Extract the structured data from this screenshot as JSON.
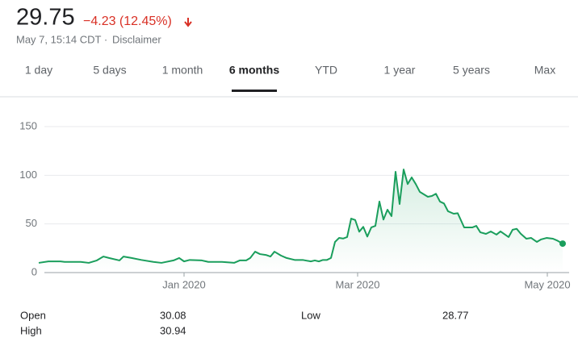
{
  "header": {
    "price": 29.75,
    "change": "−4.23 (12.45%)",
    "timestamp": "May 7, 15:14 CDT ·",
    "disclaimer": "Disclaimer"
  },
  "tabs": [
    "1 day",
    "5 days",
    "1 month",
    "6 months",
    "YTD",
    "1 year",
    "5 years",
    "Max"
  ],
  "selected_tab": 3,
  "chart_data": {
    "type": "line",
    "color": "#1a9e5c",
    "grid": true,
    "x": [
      0,
      2.4,
      5.4,
      6.4,
      8.4,
      10.4,
      12.4,
      14.4,
      16,
      17.4,
      20,
      21,
      23,
      25.4,
      28.4,
      30.4,
      33.4,
      34.8,
      36,
      37.4,
      40.4,
      42,
      45.4,
      48.4,
      49.8,
      51.4,
      52.4,
      53.6,
      54.8,
      56.4,
      57.4,
      58.4,
      60,
      61.4,
      63.4,
      65.4,
      67.4,
      68.4,
      69.4,
      70.4,
      71.4,
      72.4,
      73.4,
      74.4,
      75.4,
      76.4,
      77.4,
      78.4,
      79.4,
      80.4,
      81.4,
      82.4,
      83.4,
      84.4,
      85.4,
      86.4,
      87.4,
      88.4,
      89.4,
      90.4,
      91.4,
      92.4,
      93.4,
      94.4,
      96.4,
      97.4,
      98.4,
      99.4,
      100.4,
      101.4,
      102.8,
      103.8,
      105.4,
      107.4,
      108.4,
      109.4,
      110.8,
      112,
      113.4,
      114.4,
      116.4,
      117.4,
      118.4,
      119.4,
      120.8,
      122,
      123.4,
      124.4,
      125.8,
      127.4,
      128.4,
      129.8
    ],
    "values": [
      10,
      11.5,
      11.5,
      11,
      11,
      11,
      10,
      12.5,
      16.5,
      15,
      12.5,
      16.5,
      15,
      13,
      11,
      10,
      12.5,
      15,
      11.5,
      13,
      12.5,
      11,
      11,
      10,
      12.5,
      12.5,
      15,
      21.5,
      19,
      18,
      16.5,
      21.5,
      17.5,
      15,
      13,
      13,
      11.5,
      12.5,
      11.5,
      13,
      13,
      15,
      31.5,
      35.6,
      35,
      36.5,
      55.5,
      54,
      42,
      47,
      37,
      46.5,
      48,
      73,
      54.5,
      64.6,
      58,
      103.6,
      70.4,
      106,
      91,
      97.8,
      91,
      83,
      77.9,
      78.7,
      81,
      73,
      71,
      63,
      60.5,
      61,
      46.4,
      46.4,
      48,
      41.4,
      39.8,
      42.3,
      39,
      42.3,
      36.5,
      44,
      45,
      40,
      34.8,
      35.6,
      31.5,
      34,
      35.6,
      34.8,
      33,
      29.75
    ],
    "xlim": [
      0,
      130
    ],
    "xticks": [
      {
        "value": 36,
        "label": "Jan 2020"
      },
      {
        "value": 79,
        "label": "Mar 2020"
      },
      {
        "value": 126,
        "label": "May 2020"
      }
    ],
    "ylim": [
      0,
      150
    ],
    "yticks": [
      0,
      50,
      100,
      150
    ]
  },
  "stats": [
    {
      "label": "Open",
      "value": 30.08
    },
    {
      "label": "High",
      "value": 30.94
    },
    {
      "label": "Low",
      "value": 28.77
    }
  ]
}
